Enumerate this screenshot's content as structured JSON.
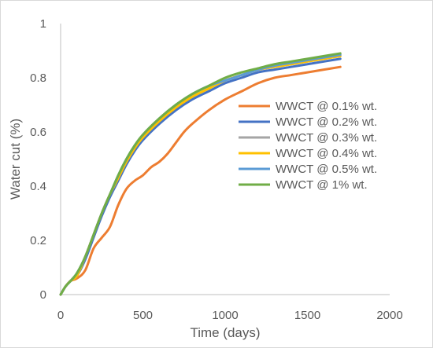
{
  "chart_data": {
    "type": "line",
    "title": "",
    "xlabel": "Time (days)",
    "ylabel": "Water cut (%)",
    "xlim": [
      0,
      2000
    ],
    "ylim": [
      0,
      1
    ],
    "x_ticks": [
      "0",
      "500",
      "1000",
      "1500",
      "2000"
    ],
    "y_ticks": [
      "0",
      "0.2",
      "0.4",
      "0.6",
      "0.8",
      "1"
    ],
    "grid": false,
    "legend_position": "right",
    "series": [
      {
        "name": "WWCT @ 0.1% wt.",
        "color": "#ED7D31",
        "points": [
          [
            0,
            0
          ],
          [
            30,
            0.03
          ],
          [
            60,
            0.05
          ],
          [
            100,
            0.06
          ],
          [
            150,
            0.09
          ],
          [
            200,
            0.17
          ],
          [
            250,
            0.21
          ],
          [
            300,
            0.25
          ],
          [
            350,
            0.33
          ],
          [
            400,
            0.39
          ],
          [
            450,
            0.42
          ],
          [
            500,
            0.44
          ],
          [
            550,
            0.47
          ],
          [
            600,
            0.49
          ],
          [
            650,
            0.52
          ],
          [
            700,
            0.56
          ],
          [
            750,
            0.6
          ],
          [
            800,
            0.63
          ],
          [
            900,
            0.68
          ],
          [
            1000,
            0.72
          ],
          [
            1100,
            0.75
          ],
          [
            1200,
            0.78
          ],
          [
            1300,
            0.8
          ],
          [
            1400,
            0.81
          ],
          [
            1500,
            0.82
          ],
          [
            1600,
            0.83
          ],
          [
            1700,
            0.84
          ]
        ]
      },
      {
        "name": "WWCT @ 0.2% wt.",
        "color": "#4472C4",
        "points": [
          [
            0,
            0
          ],
          [
            30,
            0.03
          ],
          [
            60,
            0.05
          ],
          [
            100,
            0.07
          ],
          [
            150,
            0.13
          ],
          [
            200,
            0.21
          ],
          [
            250,
            0.29
          ],
          [
            300,
            0.36
          ],
          [
            350,
            0.42
          ],
          [
            400,
            0.48
          ],
          [
            450,
            0.53
          ],
          [
            500,
            0.57
          ],
          [
            600,
            0.63
          ],
          [
            700,
            0.68
          ],
          [
            800,
            0.72
          ],
          [
            900,
            0.75
          ],
          [
            1000,
            0.78
          ],
          [
            1100,
            0.8
          ],
          [
            1200,
            0.82
          ],
          [
            1300,
            0.83
          ],
          [
            1400,
            0.84
          ],
          [
            1500,
            0.85
          ],
          [
            1600,
            0.86
          ],
          [
            1700,
            0.87
          ]
        ]
      },
      {
        "name": "WWCT @ 0.3% wt.",
        "color": "#A5A5A5",
        "points": [
          [
            0,
            0
          ],
          [
            30,
            0.03
          ],
          [
            60,
            0.05
          ],
          [
            100,
            0.07
          ],
          [
            150,
            0.14
          ],
          [
            200,
            0.22
          ],
          [
            250,
            0.3
          ],
          [
            300,
            0.37
          ],
          [
            350,
            0.43
          ],
          [
            400,
            0.49
          ],
          [
            450,
            0.54
          ],
          [
            500,
            0.58
          ],
          [
            600,
            0.64
          ],
          [
            700,
            0.69
          ],
          [
            800,
            0.73
          ],
          [
            900,
            0.76
          ],
          [
            1000,
            0.79
          ],
          [
            1100,
            0.81
          ],
          [
            1200,
            0.83
          ],
          [
            1300,
            0.84
          ],
          [
            1400,
            0.85
          ],
          [
            1500,
            0.86
          ],
          [
            1600,
            0.87
          ],
          [
            1700,
            0.88
          ]
        ]
      },
      {
        "name": "WWCT @ 0.4% wt.",
        "color": "#FFC000",
        "points": [
          [
            0,
            0
          ],
          [
            30,
            0.03
          ],
          [
            60,
            0.05
          ],
          [
            100,
            0.07
          ],
          [
            150,
            0.14
          ],
          [
            200,
            0.22
          ],
          [
            250,
            0.3
          ],
          [
            300,
            0.37
          ],
          [
            350,
            0.43
          ],
          [
            400,
            0.49
          ],
          [
            450,
            0.54
          ],
          [
            500,
            0.58
          ],
          [
            600,
            0.64
          ],
          [
            700,
            0.69
          ],
          [
            800,
            0.73
          ],
          [
            900,
            0.76
          ],
          [
            1000,
            0.79
          ],
          [
            1100,
            0.81
          ],
          [
            1200,
            0.83
          ],
          [
            1300,
            0.84
          ],
          [
            1400,
            0.85
          ],
          [
            1500,
            0.86
          ],
          [
            1600,
            0.87
          ],
          [
            1700,
            0.88
          ]
        ]
      },
      {
        "name": "WWCT @ 0.5% wt.",
        "color": "#5B9BD5",
        "points": [
          [
            0,
            0
          ],
          [
            30,
            0.03
          ],
          [
            60,
            0.05
          ],
          [
            100,
            0.08
          ],
          [
            150,
            0.14
          ],
          [
            200,
            0.22
          ],
          [
            250,
            0.3
          ],
          [
            300,
            0.37
          ],
          [
            350,
            0.44
          ],
          [
            400,
            0.5
          ],
          [
            450,
            0.55
          ],
          [
            500,
            0.59
          ],
          [
            600,
            0.65
          ],
          [
            700,
            0.7
          ],
          [
            800,
            0.74
          ],
          [
            900,
            0.77
          ],
          [
            1000,
            0.79
          ],
          [
            1100,
            0.81
          ],
          [
            1200,
            0.83
          ],
          [
            1300,
            0.845
          ],
          [
            1400,
            0.855
          ],
          [
            1500,
            0.865
          ],
          [
            1600,
            0.875
          ],
          [
            1700,
            0.885
          ]
        ]
      },
      {
        "name": "WWCT @ 1% wt.",
        "color": "#70AD47",
        "points": [
          [
            0,
            0
          ],
          [
            30,
            0.03
          ],
          [
            60,
            0.05
          ],
          [
            100,
            0.08
          ],
          [
            150,
            0.14
          ],
          [
            200,
            0.22
          ],
          [
            250,
            0.3
          ],
          [
            300,
            0.37
          ],
          [
            350,
            0.44
          ],
          [
            400,
            0.5
          ],
          [
            450,
            0.55
          ],
          [
            500,
            0.59
          ],
          [
            600,
            0.65
          ],
          [
            700,
            0.7
          ],
          [
            800,
            0.74
          ],
          [
            900,
            0.77
          ],
          [
            1000,
            0.8
          ],
          [
            1100,
            0.82
          ],
          [
            1200,
            0.835
          ],
          [
            1300,
            0.85
          ],
          [
            1400,
            0.86
          ],
          [
            1500,
            0.87
          ],
          [
            1600,
            0.88
          ],
          [
            1700,
            0.89
          ]
        ]
      }
    ]
  }
}
